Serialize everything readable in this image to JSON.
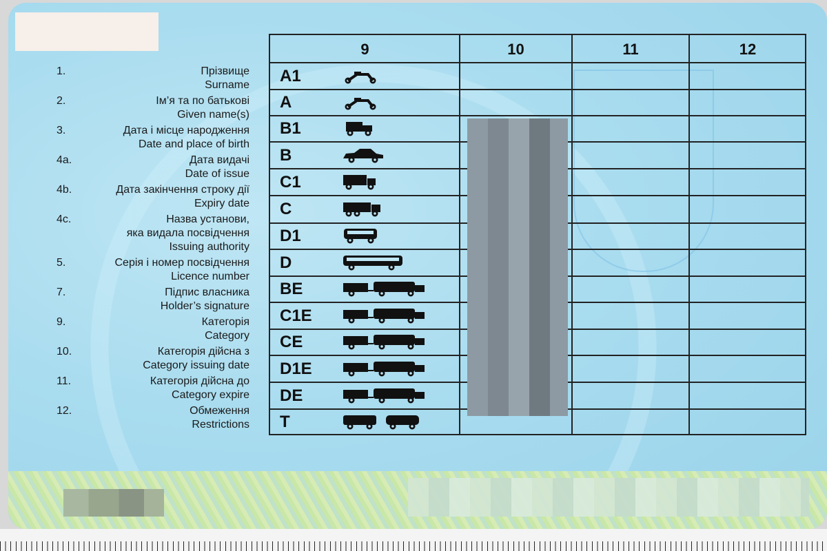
{
  "fields": [
    {
      "num": "1.",
      "uk": "Прізвище",
      "en": "Surname"
    },
    {
      "num": "2.",
      "uk": "Ім’я та по батькові",
      "en": "Given name(s)"
    },
    {
      "num": "3.",
      "uk": "Дата і місце народження",
      "en": "Date and place of birth"
    },
    {
      "num": "4a.",
      "uk": "Дата видачі",
      "en": "Date of issue"
    },
    {
      "num": "4b.",
      "uk": "Дата закінчення строку дії",
      "en": "Expiry date"
    },
    {
      "num": "4c.",
      "uk": "Назва установи,\nяка видала посвідчення",
      "en": "Issuing authority"
    },
    {
      "num": "5.",
      "uk": "Серія і номер посвідчення",
      "en": "Licence number"
    },
    {
      "num": "7.",
      "uk": "Підпис власника",
      "en": "Holder’s signature"
    },
    {
      "num": "9.",
      "uk": "Категорія",
      "en": "Category"
    },
    {
      "num": "10.",
      "uk": "Категорія дійсна з",
      "en": "Category issuing date"
    },
    {
      "num": "11.",
      "uk": "Категорія дійсна до",
      "en": "Category expire"
    },
    {
      "num": "12.",
      "uk": "Обмеження",
      "en": "Restrictions"
    }
  ],
  "table": {
    "headers": [
      "9",
      "10",
      "11",
      "12"
    ],
    "categories": [
      {
        "code": "A1",
        "icon": "moped-icon"
      },
      {
        "code": "A",
        "icon": "motorcycle-icon"
      },
      {
        "code": "B1",
        "icon": "quad-vehicle-icon"
      },
      {
        "code": "B",
        "icon": "car-icon"
      },
      {
        "code": "C1",
        "icon": "light-truck-icon"
      },
      {
        "code": "C",
        "icon": "truck-icon"
      },
      {
        "code": "D1",
        "icon": "minibus-icon"
      },
      {
        "code": "D",
        "icon": "bus-icon"
      },
      {
        "code": "BE",
        "icon": "car-trailer-icon"
      },
      {
        "code": "C1E",
        "icon": "light-truck-trailer-icon"
      },
      {
        "code": "CE",
        "icon": "truck-trailer-icon"
      },
      {
        "code": "D1E",
        "icon": "minibus-trailer-icon"
      },
      {
        "code": "DE",
        "icon": "bus-trailer-icon"
      },
      {
        "code": "T",
        "icon": "tram-trolleybus-icon"
      }
    ]
  },
  "colors": {
    "card": "#a9dcef",
    "ink": "#1a1a1a",
    "band": "#cfe8b0"
  }
}
